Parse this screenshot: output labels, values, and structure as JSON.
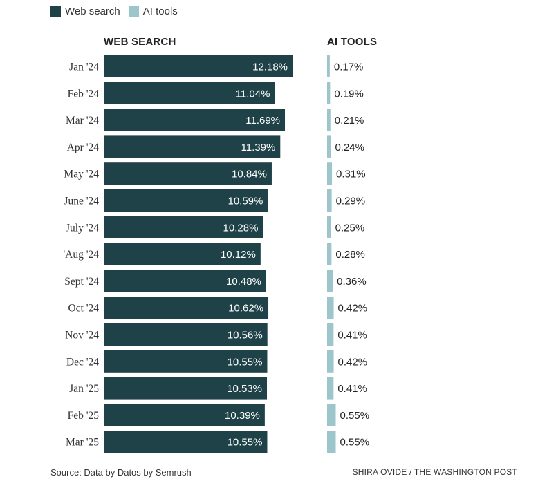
{
  "legend": {
    "web_label": "Web search",
    "ai_label": "AI tools"
  },
  "colors": {
    "web_bar": "#1f4248",
    "ai_bar": "#9cc5cc",
    "web_text": "#ffffff",
    "ai_text": "#222222",
    "label_text": "#333333"
  },
  "footer": {
    "source": "Source: Data by Datos by Semrush",
    "credit": "SHIRA OVIDE / THE WASHINGTON POST"
  },
  "chart_data": {
    "type": "bar",
    "orientation": "horizontal",
    "categories": [
      "Jan '24",
      "Feb '24",
      "Mar '24",
      "Apr '24",
      "May '24",
      "June '24",
      "July '24",
      "'Aug '24",
      "Sept '24",
      "Oct '24",
      "Nov '24",
      "Dec '24",
      "Jan '25",
      "Feb '25",
      "Mar '25"
    ],
    "panels": [
      {
        "title": "WEB SEARCH",
        "series_name": "Web search",
        "values": [
          12.18,
          11.04,
          11.69,
          11.39,
          10.84,
          10.59,
          10.28,
          10.12,
          10.48,
          10.62,
          10.56,
          10.55,
          10.53,
          10.39,
          10.55
        ],
        "labels": [
          "12.18%",
          "11.04%",
          "11.69%",
          "11.39%",
          "10.84%",
          "10.59%",
          "10.28%",
          "10.12%",
          "10.48%",
          "10.62%",
          "10.56%",
          "10.55%",
          "10.53%",
          "10.39%",
          "10.55%"
        ],
        "color": "#1f4248",
        "label_position": "inside-end"
      },
      {
        "title": "AI TOOLS",
        "series_name": "AI tools",
        "values": [
          0.17,
          0.19,
          0.21,
          0.24,
          0.31,
          0.29,
          0.25,
          0.28,
          0.36,
          0.42,
          0.41,
          0.42,
          0.41,
          0.55,
          0.55
        ],
        "labels": [
          "0.17%",
          "0.19%",
          "0.21%",
          "0.24%",
          "0.31%",
          "0.29%",
          "0.25%",
          "0.28%",
          "0.36%",
          "0.42%",
          "0.41%",
          "0.42%",
          "0.41%",
          "0.55%",
          "0.55%"
        ],
        "color": "#9cc5cc",
        "label_position": "outside-end"
      }
    ],
    "xlabel": "",
    "ylabel": "",
    "unit": "%",
    "grid": false,
    "legend": "top-left"
  }
}
